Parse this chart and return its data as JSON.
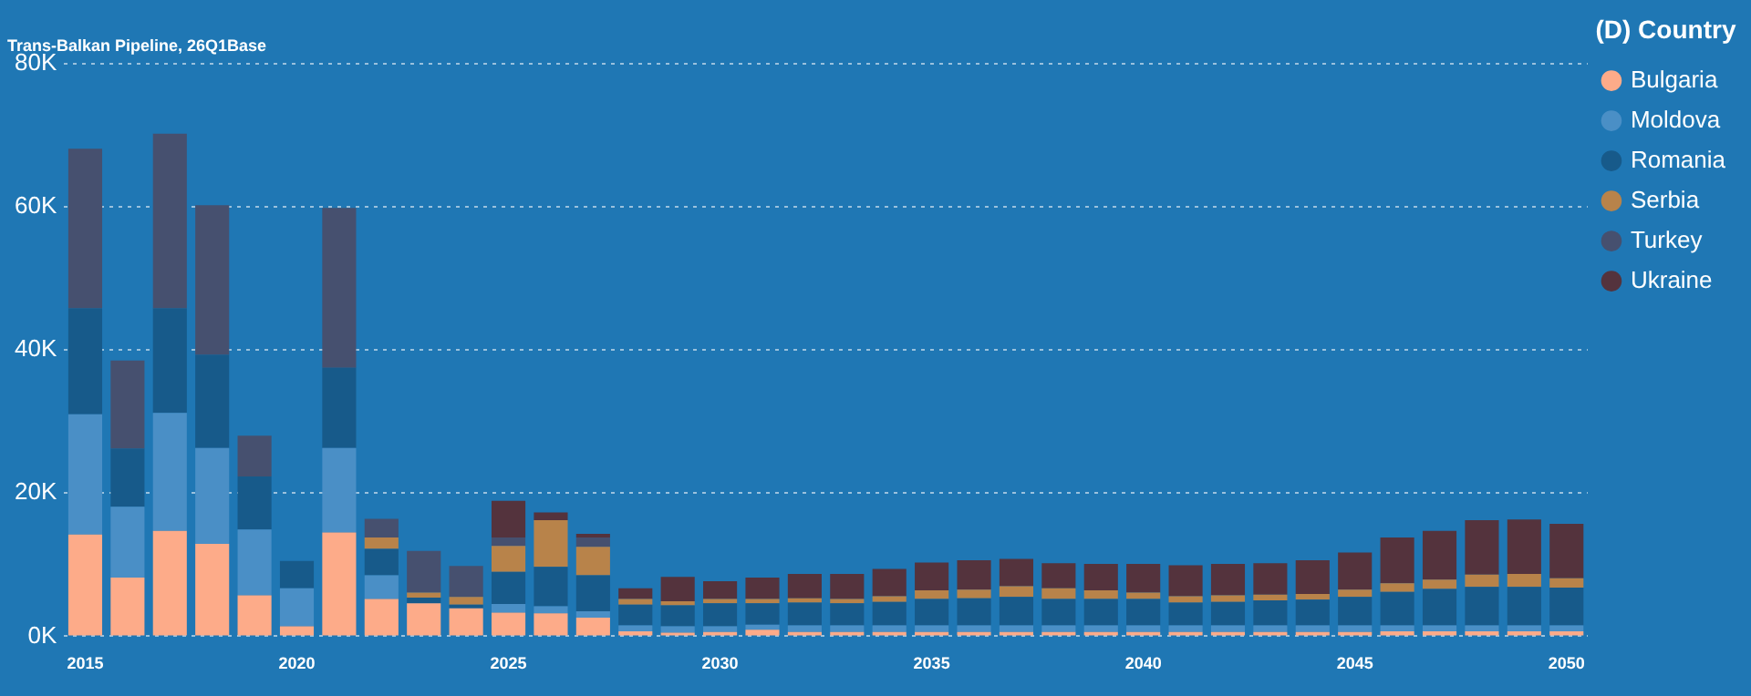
{
  "chart_data": {
    "type": "bar",
    "title": "Trans-Balkan Pipeline, 26Q1Base",
    "legend_title": "(D) Country",
    "stacked": true,
    "grid": "y",
    "legend": "top right",
    "categories": [
      "2015",
      null,
      null,
      null,
      null,
      "2020",
      null,
      null,
      null,
      null,
      "2025",
      null,
      null,
      null,
      null,
      "2030",
      null,
      null,
      null,
      null,
      "2035",
      null,
      null,
      null,
      null,
      "2040",
      null,
      null,
      null,
      null,
      "2045",
      null,
      null,
      null,
      null,
      "2050"
    ],
    "ylim": [
      0,
      80000
    ],
    "yticks": [
      {
        "value": 0,
        "label": "0K"
      },
      {
        "value": 20000,
        "label": "20K"
      },
      {
        "value": 40000,
        "label": "40K"
      },
      {
        "value": 60000,
        "label": "60K"
      },
      {
        "value": 80000,
        "label": "80K"
      }
    ],
    "series": [
      {
        "name": "Bulgaria",
        "color": "#fdab89",
        "values": [
          14200,
          8200,
          14700,
          12900,
          5700,
          1400,
          14500,
          5200,
          4600,
          3900,
          3300,
          3200,
          2600,
          700,
          500,
          600,
          900,
          600,
          600,
          600,
          600,
          600,
          600,
          600,
          600,
          600,
          600,
          600,
          600,
          600,
          600,
          700,
          700,
          700,
          700,
          700
        ]
      },
      {
        "name": "Moldova",
        "color": "#4a8fc6",
        "values": [
          16800,
          9900,
          16500,
          13400,
          9200,
          5300,
          11800,
          3300,
          null,
          null,
          1200,
          1000,
          900,
          800,
          900,
          800,
          700,
          900,
          900,
          900,
          900,
          900,
          900,
          900,
          900,
          900,
          900,
          900,
          900,
          900,
          900,
          800,
          800,
          800,
          800,
          800
        ]
      },
      {
        "name": "Romania",
        "color": "#175a8a",
        "values": [
          14800,
          8100,
          14600,
          13000,
          7400,
          3800,
          11200,
          3700,
          800,
          500,
          4500,
          5500,
          5000,
          2900,
          2900,
          3200,
          3000,
          3200,
          3100,
          3300,
          3700,
          3800,
          4000,
          3700,
          3700,
          3700,
          3200,
          3300,
          3500,
          3600,
          4000,
          4700,
          5100,
          5400,
          5400,
          5300
        ]
      },
      {
        "name": "Serbia",
        "color": "#b8834a",
        "values": [
          0,
          0,
          0,
          0,
          0,
          0,
          0,
          1600,
          700,
          1100,
          3600,
          6500,
          4000,
          800,
          600,
          600,
          600,
          600,
          600,
          800,
          1200,
          1200,
          1500,
          1500,
          1200,
          900,
          900,
          900,
          800,
          800,
          1000,
          1200,
          1300,
          1700,
          1800,
          1300
        ]
      },
      {
        "name": "Turkey",
        "color": "#46506f",
        "values": [
          22300,
          12300,
          24400,
          20900,
          5700,
          0,
          22300,
          2600,
          5800,
          4300,
          1200,
          null,
          1300,
          0,
          0,
          0,
          0,
          0,
          0,
          0,
          0,
          0,
          0,
          0,
          0,
          0,
          0,
          0,
          0,
          0,
          0,
          0,
          0,
          0,
          0,
          0
        ]
      },
      {
        "name": "Ukraine",
        "color": "#54333d",
        "values": [
          0,
          0,
          0,
          0,
          0,
          0,
          0,
          0,
          0,
          0,
          5100,
          1100,
          500,
          1500,
          3400,
          2500,
          3000,
          3400,
          3500,
          3800,
          3900,
          4100,
          3800,
          3500,
          3700,
          4000,
          4300,
          4400,
          4400,
          4700,
          5200,
          6400,
          6800,
          7600,
          7600,
          7600
        ]
      }
    ]
  }
}
